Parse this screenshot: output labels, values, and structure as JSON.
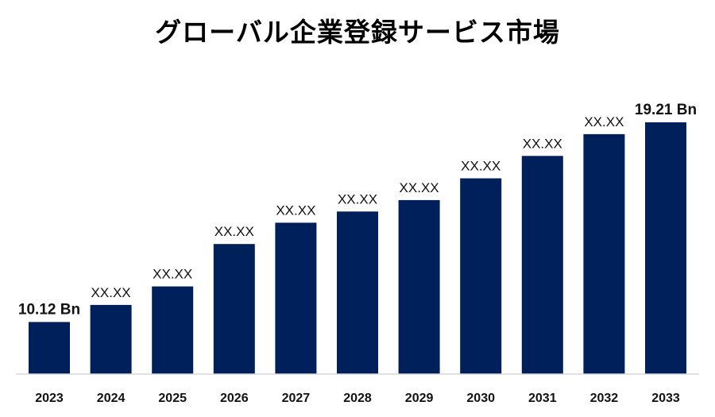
{
  "chart_data": {
    "type": "bar",
    "title": "グローバル企業登録サービス市場",
    "categories": [
      "2023",
      "2024",
      "2025",
      "2026",
      "2027",
      "2028",
      "2029",
      "2030",
      "2031",
      "2032",
      "2033"
    ],
    "values": [
      10.12,
      10.9,
      11.74,
      13.67,
      14.64,
      15.15,
      15.67,
      16.66,
      17.68,
      18.67,
      19.21
    ],
    "data_labels": [
      "10.12 Bn",
      "XX.XX",
      "XX.XX",
      "XX.XX",
      "XX.XX",
      "XX.XX",
      "XX.XX",
      "XX.XX",
      "XX.XX",
      "XX.XX",
      "19.21 Bn"
    ],
    "bold_labels": [
      true,
      false,
      false,
      false,
      false,
      false,
      false,
      false,
      false,
      false,
      true
    ],
    "ylim": [
      7.75,
      19.21
    ],
    "xlabel": "",
    "ylabel": "",
    "grid": false,
    "legend": "none",
    "bar_color": "#00205b"
  }
}
